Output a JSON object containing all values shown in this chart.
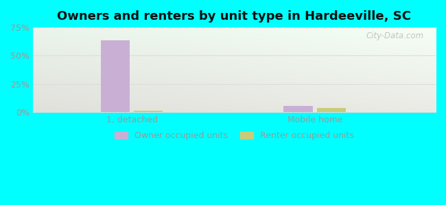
{
  "title": "Owners and renters by unit type in Hardeeville, SC",
  "categories": [
    "1, detached",
    "Mobile home"
  ],
  "owner_values": [
    63.5,
    5.5
  ],
  "renter_values": [
    1.5,
    3.5
  ],
  "owner_color": "#c9afd4",
  "renter_color": "#c8cc7a",
  "ylim": [
    0,
    75
  ],
  "yticks": [
    0,
    25,
    50,
    75
  ],
  "ytick_labels": [
    "0%",
    "25%",
    "50%",
    "75%"
  ],
  "bar_width": 0.08,
  "group_positions": [
    0.22,
    0.72
  ],
  "legend_owner": "Owner occupied units",
  "legend_renter": "Renter occupied units",
  "watermark": "City-Data.com",
  "title_fontsize": 13,
  "tick_color": "#999999",
  "grid_color": "#dddddd",
  "facecolor": "#00ffff"
}
